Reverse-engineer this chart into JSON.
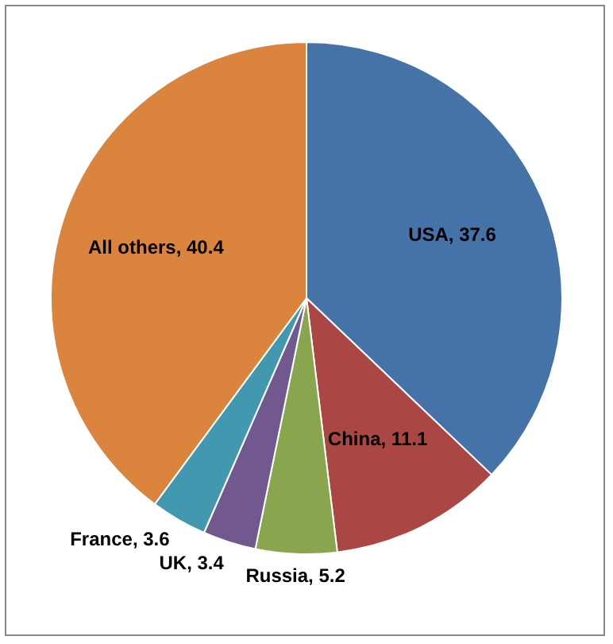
{
  "chart_data": {
    "type": "pie",
    "categories": [
      "USA",
      "China",
      "Russia",
      "UK",
      "France",
      "All others"
    ],
    "values": [
      37.6,
      11.1,
      5.2,
      3.4,
      3.6,
      40.4
    ],
    "value_labels": [
      ", 37.6",
      ", 11.1",
      ", 5.2",
      ", 3.4",
      ", 3.6",
      ", 40.4"
    ],
    "colors": [
      "#4572a7",
      "#aa4643",
      "#89a54e",
      "#71588f",
      "#4198af",
      "#db843d"
    ],
    "legend": false
  }
}
